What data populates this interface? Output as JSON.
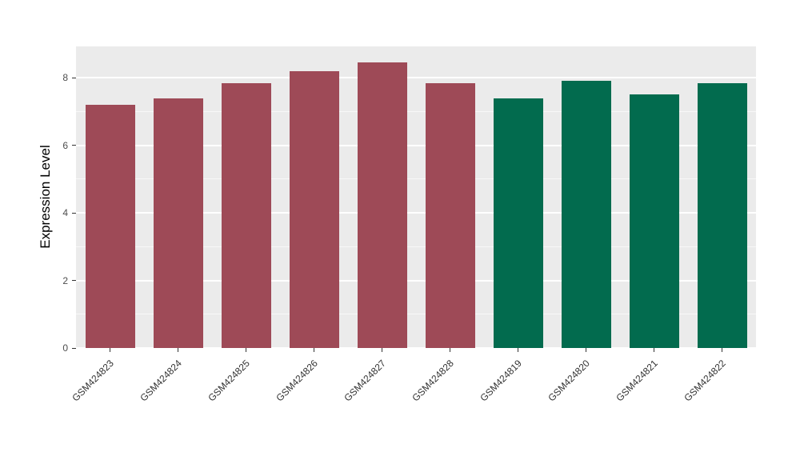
{
  "chart_data": {
    "type": "bar",
    "title": "",
    "xlabel": "",
    "ylabel": "Expression Level",
    "categories": [
      "GSM424823",
      "GSM424824",
      "GSM424825",
      "GSM424826",
      "GSM424827",
      "GSM424828",
      "GSM424819",
      "GSM424820",
      "GSM424821",
      "GSM424822"
    ],
    "values": [
      7.2,
      7.4,
      7.85,
      8.2,
      8.45,
      7.85,
      7.4,
      7.9,
      7.5,
      7.85
    ],
    "bar_colors": [
      "#9E4A57",
      "#9E4A57",
      "#9E4A57",
      "#9E4A57",
      "#9E4A57",
      "#9E4A57",
      "#026B4E",
      "#026B4E",
      "#026B4E",
      "#026B4E"
    ],
    "group_colors": {
      "maroon": "#9E4A57",
      "green": "#026B4E"
    },
    "ylim": [
      0,
      8.93
    ],
    "yticks": [
      0,
      2,
      4,
      6,
      8
    ],
    "minor_ticks": [
      1,
      3,
      5,
      7
    ],
    "panel_bg": "#EBEBEB",
    "grid_color": "#FFFFFF",
    "legend": "none",
    "grid": "on"
  }
}
